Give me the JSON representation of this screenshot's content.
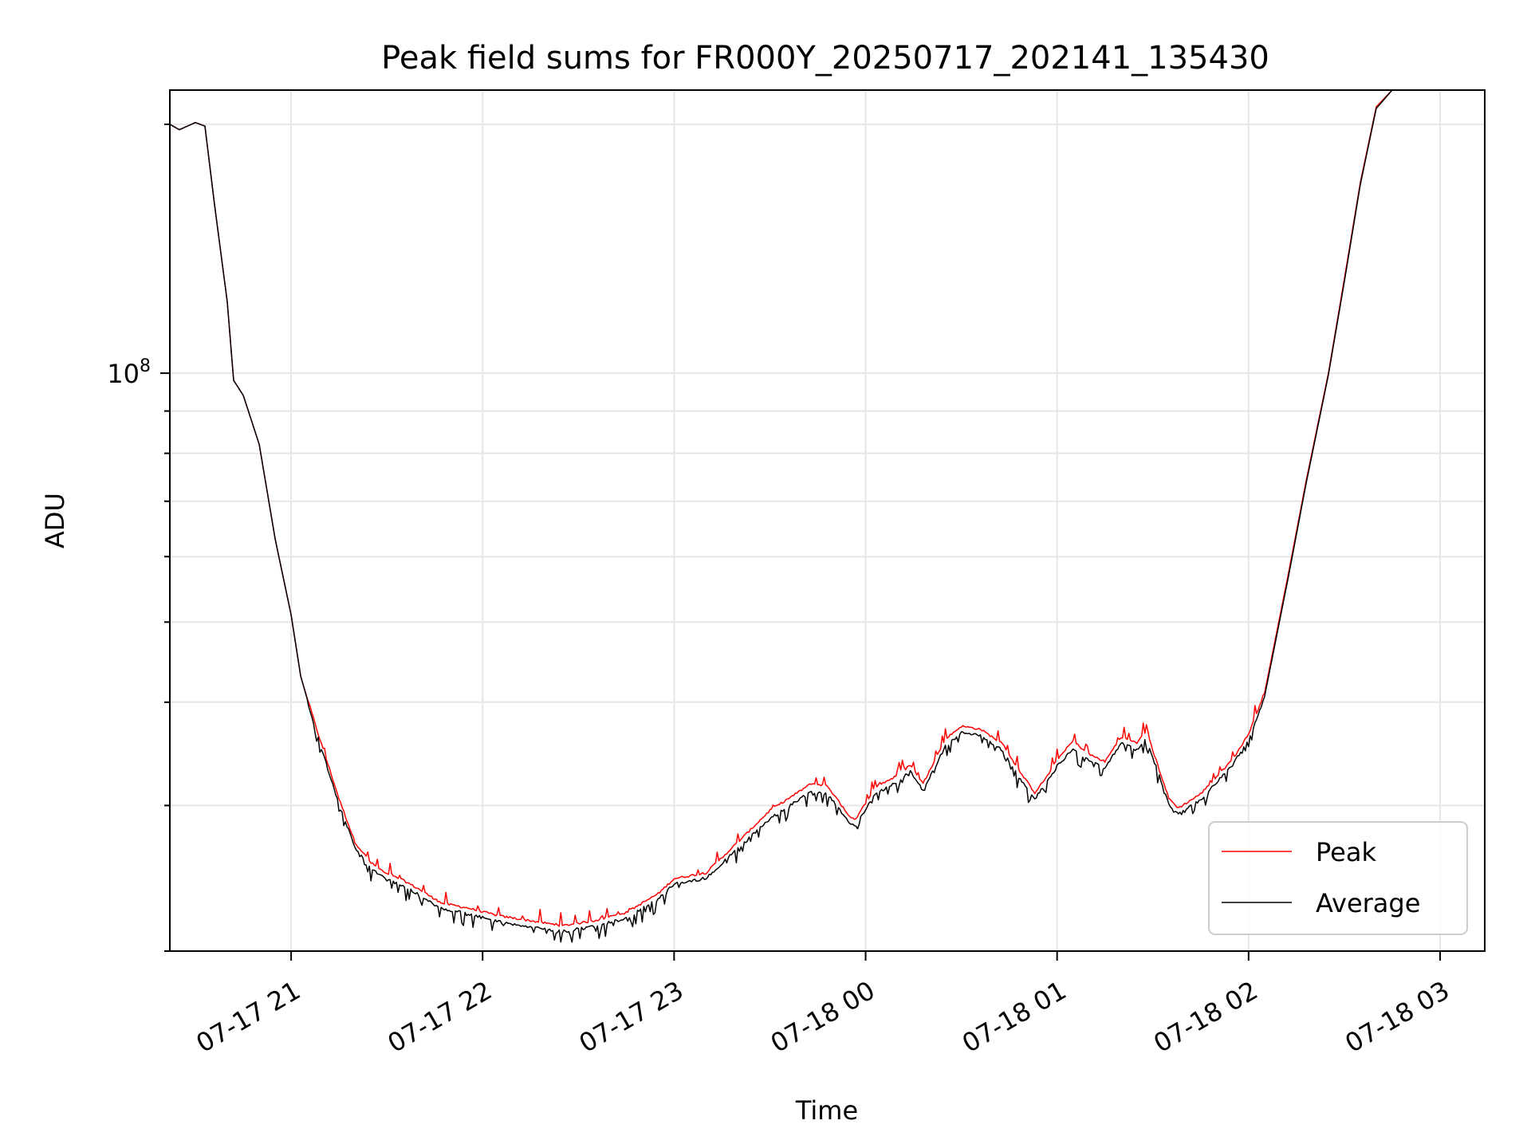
{
  "chart_data": {
    "type": "line",
    "title": "Peak field sums for FR000Y_20250717_202141_135430",
    "xlabel": "Time",
    "ylabel": "ADU",
    "yscale": "log",
    "grid": true,
    "legend_position": "lower-right",
    "x_ticks": [
      "07-17 21",
      "07-17 22",
      "07-17 23",
      "07-18 00",
      "07-18 01",
      "07-18 02",
      "07-18 03"
    ],
    "y_tick_labels": [
      {
        "base": "10",
        "exponent": "8"
      }
    ],
    "xlim": [
      "2025-07-17 20:22",
      "2025-07-18 03:14"
    ],
    "ylim": [
      20000000,
      220000000
    ],
    "series": [
      {
        "name": "Peak",
        "color": "#ff0000",
        "points": [
          [
            "2025-07-17 20:22",
            200000000
          ],
          [
            "2025-07-17 20:25",
            197000000
          ],
          [
            "2025-07-17 20:30",
            201000000
          ],
          [
            "2025-07-17 20:33",
            199000000
          ],
          [
            "2025-07-17 20:36",
            160000000
          ],
          [
            "2025-07-17 20:40",
            122000000
          ],
          [
            "2025-07-17 20:42",
            98000000
          ],
          [
            "2025-07-17 20:45",
            94000000
          ],
          [
            "2025-07-17 20:50",
            82000000
          ],
          [
            "2025-07-17 20:55",
            63000000
          ],
          [
            "2025-07-17 21:00",
            51000000
          ],
          [
            "2025-07-17 21:03",
            43000000
          ],
          [
            "2025-07-17 21:08",
            37000000
          ],
          [
            "2025-07-17 21:15",
            30500000
          ],
          [
            "2025-07-17 21:20",
            27000000
          ],
          [
            "2025-07-17 21:25",
            25500000
          ],
          [
            "2025-07-17 21:30",
            24700000
          ],
          [
            "2025-07-17 21:35",
            24300000
          ],
          [
            "2025-07-17 21:40",
            23700000
          ],
          [
            "2025-07-17 21:47",
            22800000
          ],
          [
            "2025-07-17 21:55",
            22500000
          ],
          [
            "2025-07-17 22:05",
            22000000
          ],
          [
            "2025-07-17 22:15",
            21700000
          ],
          [
            "2025-07-17 22:25",
            21400000
          ],
          [
            "2025-07-17 22:35",
            21700000
          ],
          [
            "2025-07-17 22:45",
            22200000
          ],
          [
            "2025-07-17 22:55",
            23400000
          ],
          [
            "2025-07-17 23:00",
            24400000
          ],
          [
            "2025-07-17 23:10",
            24800000
          ],
          [
            "2025-07-17 23:20",
            27000000
          ],
          [
            "2025-07-17 23:30",
            29500000
          ],
          [
            "2025-07-17 23:37",
            30700000
          ],
          [
            "2025-07-17 23:43",
            31800000
          ],
          [
            "2025-07-17 23:48",
            31600000
          ],
          [
            "2025-07-17 23:55",
            29000000
          ],
          [
            "2025-07-17 23:57",
            28800000
          ],
          [
            "2025-07-18 00:03",
            31500000
          ],
          [
            "2025-07-18 00:10",
            32500000
          ],
          [
            "2025-07-18 00:14",
            33500000
          ],
          [
            "2025-07-18 00:18",
            31800000
          ],
          [
            "2025-07-18 00:25",
            36000000
          ],
          [
            "2025-07-18 00:30",
            37300000
          ],
          [
            "2025-07-18 00:36",
            37000000
          ],
          [
            "2025-07-18 00:43",
            35500000
          ],
          [
            "2025-07-18 00:48",
            33000000
          ],
          [
            "2025-07-18 00:53",
            31000000
          ],
          [
            "2025-07-18 00:57",
            32500000
          ],
          [
            "2025-07-18 01:00",
            34000000
          ],
          [
            "2025-07-18 01:05",
            35800000
          ],
          [
            "2025-07-18 01:10",
            34500000
          ],
          [
            "2025-07-18 01:15",
            33800000
          ],
          [
            "2025-07-18 01:20",
            36200000
          ],
          [
            "2025-07-18 01:25",
            35600000
          ],
          [
            "2025-07-18 01:28",
            36800000
          ],
          [
            "2025-07-18 01:35",
            30500000
          ],
          [
            "2025-07-18 01:38",
            29700000
          ],
          [
            "2025-07-18 01:45",
            30900000
          ],
          [
            "2025-07-18 01:55",
            34000000
          ],
          [
            "2025-07-18 02:00",
            36500000
          ],
          [
            "2025-07-18 02:05",
            41000000
          ],
          [
            "2025-07-18 02:12",
            56000000
          ],
          [
            "2025-07-18 02:18",
            74000000
          ],
          [
            "2025-07-18 02:25",
            100000000
          ],
          [
            "2025-07-18 02:30",
            130000000
          ],
          [
            "2025-07-18 02:35",
            170000000
          ],
          [
            "2025-07-18 02:40",
            210000000
          ],
          [
            "2025-07-18 02:45",
            220000000
          ],
          [
            "2025-07-18 02:50",
            220000000
          ]
        ]
      },
      {
        "name": "Average",
        "color": "#000000",
        "points": [
          [
            "2025-07-17 20:22",
            200000000
          ],
          [
            "2025-07-17 20:25",
            197000000
          ],
          [
            "2025-07-17 20:30",
            201000000
          ],
          [
            "2025-07-17 20:33",
            199000000
          ],
          [
            "2025-07-17 20:36",
            160000000
          ],
          [
            "2025-07-17 20:40",
            122000000
          ],
          [
            "2025-07-17 20:42",
            98000000
          ],
          [
            "2025-07-17 20:45",
            94000000
          ],
          [
            "2025-07-17 20:50",
            82000000
          ],
          [
            "2025-07-17 20:55",
            63000000
          ],
          [
            "2025-07-17 21:00",
            51000000
          ],
          [
            "2025-07-17 21:03",
            43000000
          ],
          [
            "2025-07-17 21:08",
            36800000
          ],
          [
            "2025-07-17 21:15",
            30200000
          ],
          [
            "2025-07-17 21:20",
            26800000
          ],
          [
            "2025-07-17 21:25",
            25300000
          ],
          [
            "2025-07-17 21:30",
            24500000
          ],
          [
            "2025-07-17 21:35",
            24100000
          ],
          [
            "2025-07-17 21:40",
            23500000
          ],
          [
            "2025-07-17 21:47",
            22600000
          ],
          [
            "2025-07-17 21:55",
            22300000
          ],
          [
            "2025-07-17 22:05",
            21800000
          ],
          [
            "2025-07-17 22:15",
            21500000
          ],
          [
            "2025-07-17 22:25",
            21200000
          ],
          [
            "2025-07-17 22:35",
            21500000
          ],
          [
            "2025-07-17 22:45",
            22000000
          ],
          [
            "2025-07-17 22:55",
            23200000
          ],
          [
            "2025-07-17 23:00",
            24200000
          ],
          [
            "2025-07-17 23:10",
            24600000
          ],
          [
            "2025-07-17 23:20",
            26700000
          ],
          [
            "2025-07-17 23:30",
            29000000
          ],
          [
            "2025-07-17 23:37",
            30300000
          ],
          [
            "2025-07-17 23:43",
            31300000
          ],
          [
            "2025-07-17 23:48",
            31100000
          ],
          [
            "2025-07-17 23:55",
            28700000
          ],
          [
            "2025-07-17 23:57",
            28500000
          ],
          [
            "2025-07-18 00:03",
            31100000
          ],
          [
            "2025-07-18 00:10",
            32200000
          ],
          [
            "2025-07-18 00:14",
            33100000
          ],
          [
            "2025-07-18 00:18",
            31400000
          ],
          [
            "2025-07-18 00:25",
            35500000
          ],
          [
            "2025-07-18 00:30",
            36900000
          ],
          [
            "2025-07-18 00:36",
            36600000
          ],
          [
            "2025-07-18 00:43",
            35100000
          ],
          [
            "2025-07-18 00:48",
            32600000
          ],
          [
            "2025-07-18 00:53",
            30700000
          ],
          [
            "2025-07-18 00:57",
            32200000
          ],
          [
            "2025-07-18 01:00",
            33600000
          ],
          [
            "2025-07-18 01:05",
            35300000
          ],
          [
            "2025-07-18 01:10",
            34100000
          ],
          [
            "2025-07-18 01:15",
            33400000
          ],
          [
            "2025-07-18 01:20",
            35800000
          ],
          [
            "2025-07-18 01:25",
            35200000
          ],
          [
            "2025-07-18 01:28",
            36300000
          ],
          [
            "2025-07-18 01:35",
            30200000
          ],
          [
            "2025-07-18 01:38",
            29500000
          ],
          [
            "2025-07-18 01:45",
            30600000
          ],
          [
            "2025-07-18 01:55",
            33700000
          ],
          [
            "2025-07-18 02:00",
            36200000
          ],
          [
            "2025-07-18 02:05",
            40600000
          ],
          [
            "2025-07-18 02:12",
            55500000
          ],
          [
            "2025-07-18 02:18",
            73500000
          ],
          [
            "2025-07-18 02:25",
            99500000
          ],
          [
            "2025-07-18 02:30",
            129000000
          ],
          [
            "2025-07-18 02:35",
            169000000
          ],
          [
            "2025-07-18 02:40",
            209000000
          ],
          [
            "2025-07-18 02:45",
            220000000
          ],
          [
            "2025-07-18 02:50",
            220000000
          ]
        ]
      }
    ]
  }
}
